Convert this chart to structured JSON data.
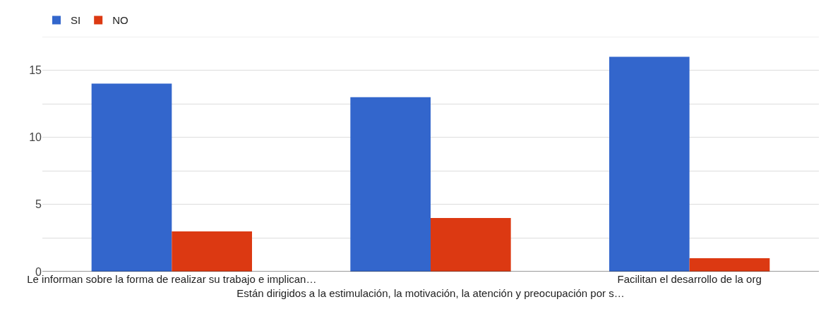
{
  "chart_data": {
    "type": "bar",
    "categories": [
      "Le informan sobre la forma de realizar su trabajo e implican…",
      "Están dirigidos a la estimulación, la motivación, la atención y preocupación por s…",
      "Facilitan el desarrollo de la org"
    ],
    "series": [
      {
        "name": "SI",
        "color": "#3366cc",
        "values": [
          14,
          13,
          16
        ]
      },
      {
        "name": "NO",
        "color": "#dc3912",
        "values": [
          3,
          4,
          1
        ]
      }
    ],
    "ylim": [
      0,
      17.5
    ],
    "yticks": [
      0,
      {
        "value": 2.5,
        "label": null
      },
      5,
      {
        "value": 7.5,
        "label": null
      },
      10,
      {
        "value": 12.5,
        "label": null
      },
      15,
      {
        "value": 17.5,
        "label": null
      }
    ],
    "grid": "y",
    "legend": "top left"
  }
}
